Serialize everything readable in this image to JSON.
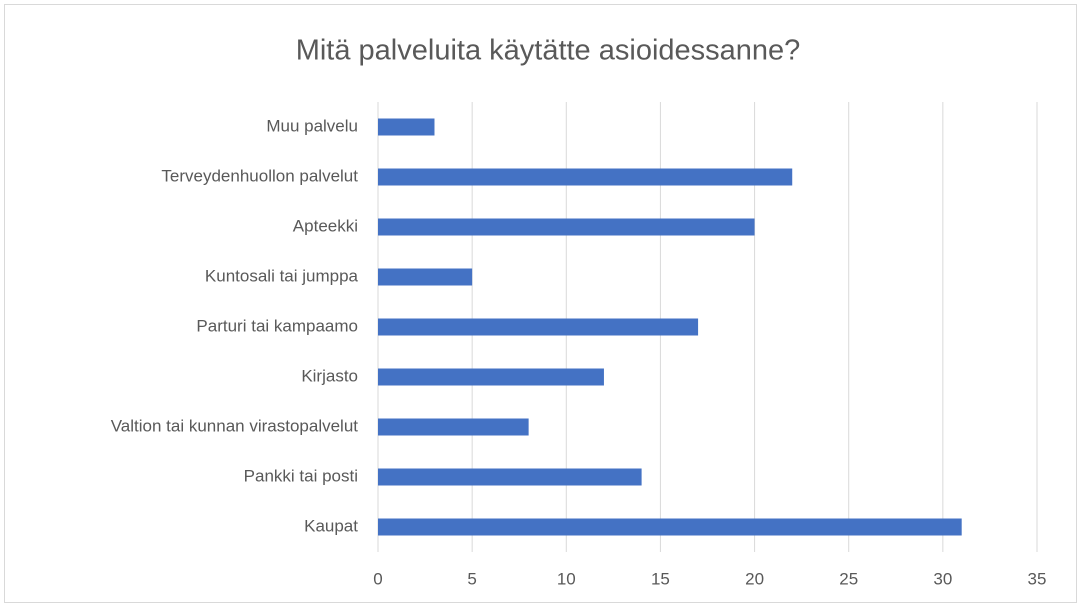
{
  "chart_data": {
    "type": "barh",
    "title": "Mitä palveluita käytätte asioidessanne?",
    "categories": [
      "Muu palvelu",
      "Terveydenhuollon palvelut",
      "Apteekki",
      "Kuntosali tai jumppa",
      "Parturi tai kampaamo",
      "Kirjasto",
      "Valtion tai kunnan virastopalvelut",
      "Pankki tai posti",
      "Kaupat"
    ],
    "values": [
      3,
      22,
      20,
      5,
      17,
      12,
      8,
      14,
      31
    ],
    "color": "#4472c4",
    "xlim": [
      0,
      35
    ],
    "xticks": [
      0,
      5,
      10,
      15,
      20,
      25,
      30,
      35
    ],
    "grid": true
  }
}
